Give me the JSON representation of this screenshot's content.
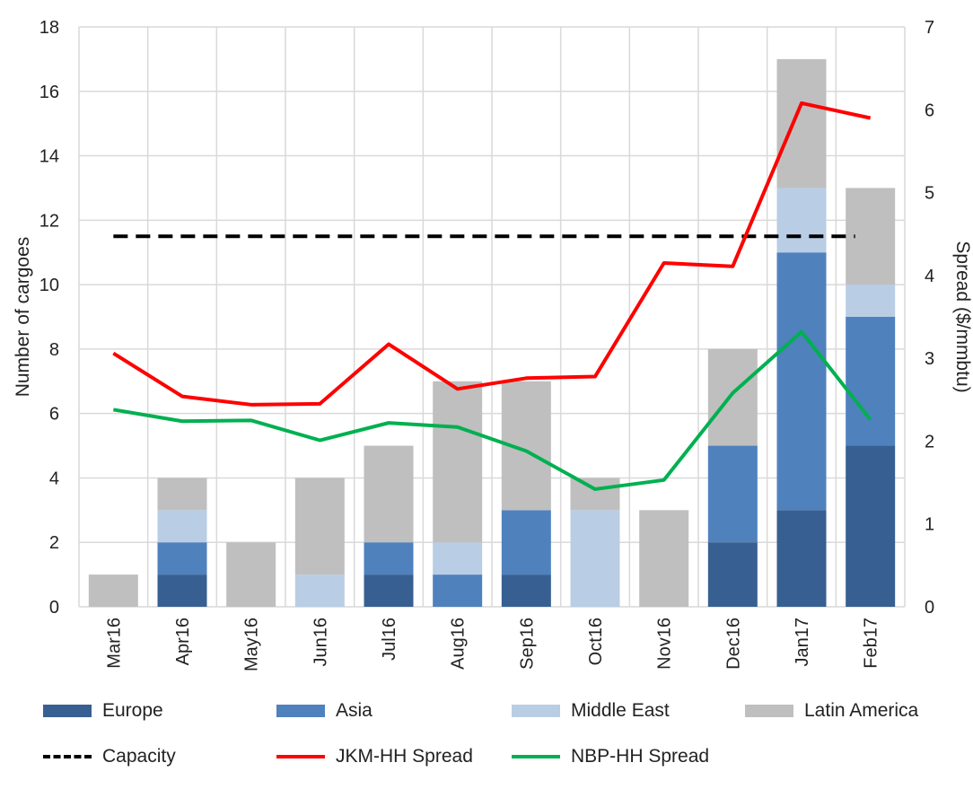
{
  "chart_data": {
    "type": "bar",
    "categories": [
      "Mar16",
      "Apr16",
      "May16",
      "Jun16",
      "Jul16",
      "Aug16",
      "Sep16",
      "Oct16",
      "Nov16",
      "Dec16",
      "Jan17",
      "Feb17"
    ],
    "series": [
      {
        "name": "Europe",
        "kind": "stacked-bar",
        "axis": "left",
        "color": "#375F91",
        "values": [
          0,
          1,
          0,
          0,
          1,
          0,
          1,
          0,
          0,
          2,
          3,
          5
        ]
      },
      {
        "name": "Asia",
        "kind": "stacked-bar",
        "axis": "left",
        "color": "#4F81BD",
        "values": [
          0,
          1,
          0,
          0,
          1,
          1,
          2,
          0,
          0,
          3,
          8,
          4
        ]
      },
      {
        "name": "Middle East",
        "kind": "stacked-bar",
        "axis": "left",
        "color": "#B9CDE5",
        "values": [
          0,
          1,
          0,
          1,
          0,
          1,
          0,
          3,
          0,
          0,
          2,
          1
        ]
      },
      {
        "name": "Latin America",
        "kind": "stacked-bar",
        "axis": "left",
        "color": "#BFBFBF",
        "values": [
          1,
          1,
          2,
          3,
          3,
          5,
          4,
          1,
          3,
          3,
          4,
          3
        ]
      },
      {
        "name": "Capacity",
        "kind": "dashed-line",
        "axis": "left",
        "color": "#000000",
        "values": [
          11.5,
          11.5,
          11.5,
          11.5,
          11.5,
          11.5,
          11.5,
          11.5,
          11.5,
          11.5,
          11.5,
          11.5
        ]
      },
      {
        "name": "JKM-HH Spread",
        "kind": "line",
        "axis": "right",
        "color": "#FF0000",
        "values": [
          3.06,
          2.54,
          2.44,
          2.45,
          3.17,
          2.63,
          2.76,
          2.78,
          4.15,
          4.11,
          6.08,
          5.9
        ]
      },
      {
        "name": "NBP-HH Spread",
        "kind": "line",
        "axis": "right",
        "color": "#00B050",
        "values": [
          2.38,
          2.24,
          2.25,
          2.01,
          2.22,
          2.17,
          1.88,
          1.42,
          1.53,
          2.58,
          3.32,
          2.26
        ]
      }
    ],
    "ylabel": "Number of cargoes",
    "y2label": "Spread ($/mmbtu)",
    "ylim": [
      0,
      18
    ],
    "y2lim": [
      0,
      7
    ],
    "yticks": [
      0,
      2,
      4,
      6,
      8,
      10,
      12,
      14,
      16,
      18
    ],
    "y2ticks": [
      0,
      1,
      2,
      3,
      4,
      5,
      6,
      7
    ],
    "grid": true,
    "legend_placement": "bottom"
  }
}
